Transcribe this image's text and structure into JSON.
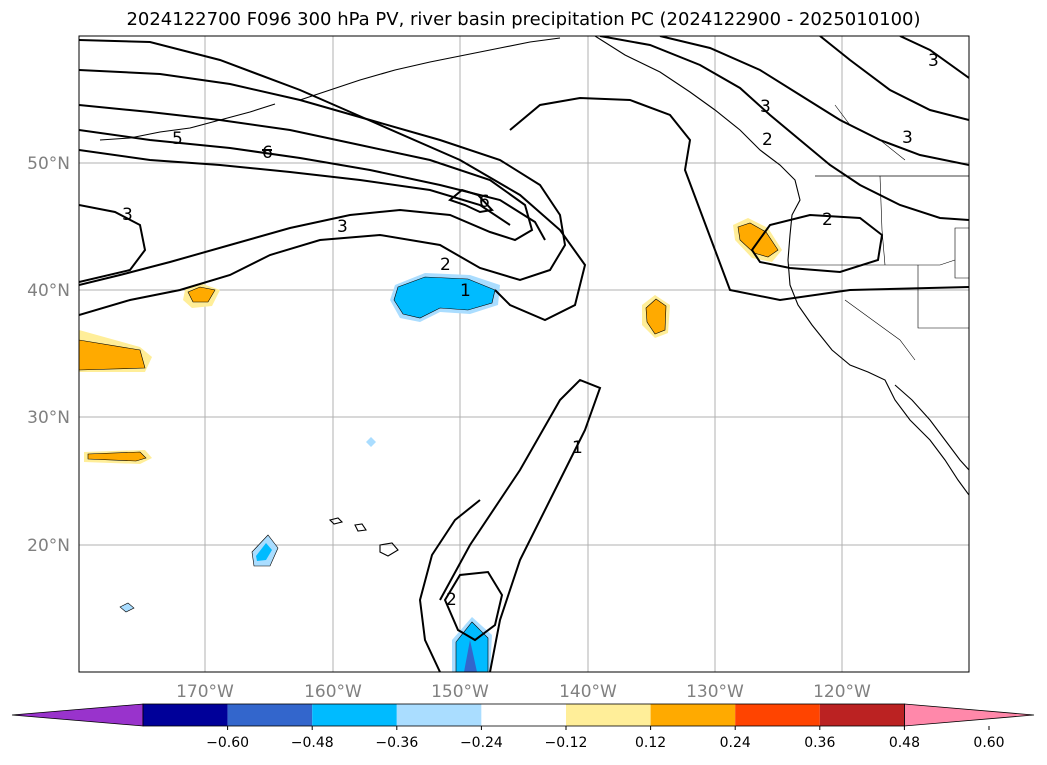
{
  "title": "2024122700 F096 300 hPa PV, river basin precipitation PC (2024122900 - 2025010100)",
  "map": {
    "lat_labels": [
      "50°N",
      "40°N",
      "30°N",
      "20°N"
    ],
    "lon_labels": [
      "170°W",
      "160°W",
      "150°W",
      "140°W",
      "130°W",
      "120°W"
    ],
    "pv_contour_labels": [
      "5",
      "6",
      "6",
      "3",
      "3",
      "2",
      "1",
      "2",
      "1",
      "3",
      "2",
      "2",
      "3",
      "3"
    ]
  },
  "colorbar": {
    "ticks": [
      "−0.60",
      "−0.48",
      "−0.36",
      "−0.24",
      "−0.12",
      "0.12",
      "0.24",
      "0.36",
      "0.48",
      "0.60"
    ],
    "colors": [
      "#9933cc",
      "#000099",
      "#3366cc",
      "#00bbff",
      "#aaddff",
      "#ffffff",
      "#ffee99",
      "#ffaa00",
      "#ff4400",
      "#bb2222",
      "#ff88aa"
    ]
  }
}
